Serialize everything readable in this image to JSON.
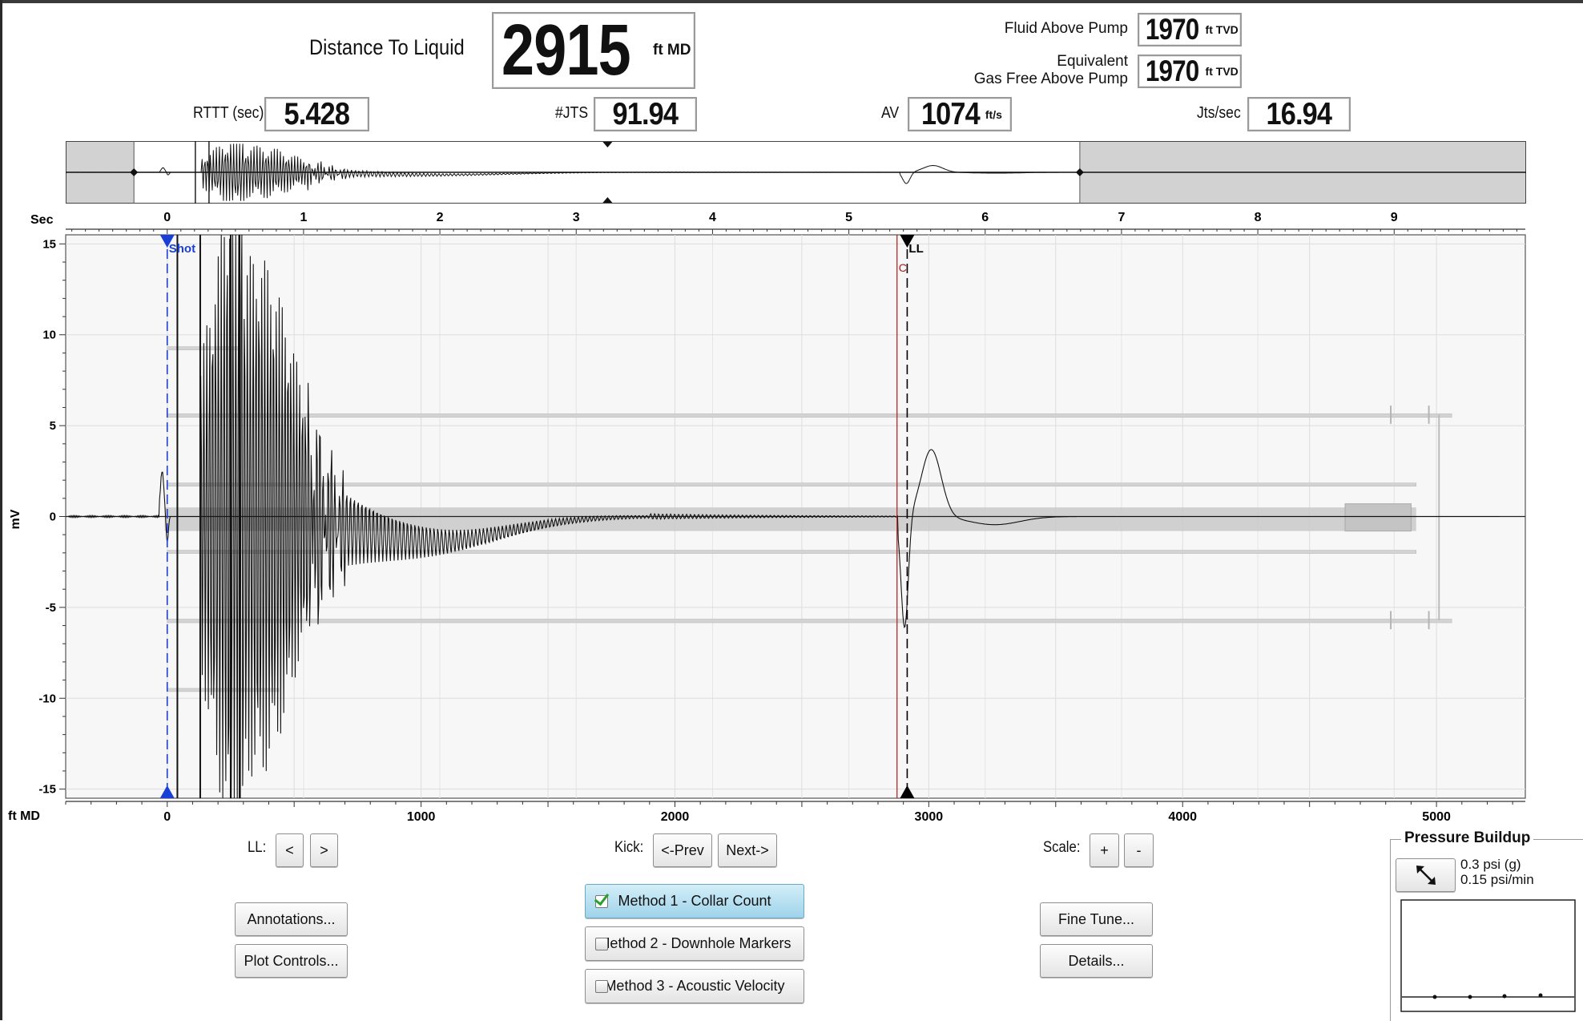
{
  "header": {
    "distance_label": "Distance To Liquid",
    "distance_value": "2915",
    "distance_unit": "ft MD",
    "fluid_above_pump_label": "Fluid Above Pump",
    "fluid_above_pump_value": "1970",
    "fluid_above_pump_unit": "ft TVD",
    "equivalent_label_1": "Equivalent",
    "equivalent_label_2": "Gas Free Above Pump",
    "equivalent_value": "1970",
    "equivalent_unit": "ft TVD",
    "rttt_label": "RTTT (sec)",
    "rttt_value": "5.428",
    "jts_label": "#JTS",
    "jts_value": "91.94",
    "av_label": "AV",
    "av_value": "1074",
    "av_unit": "ft/s",
    "jts_per_sec_label": "Jts/sec",
    "jts_per_sec_value": "16.94"
  },
  "chart_data": {
    "type": "line",
    "top_axis_label": "Sec",
    "bottom_axis_label": "ft MD",
    "ylabel": "mV",
    "top_axis_range": [
      -0.75,
      9.95
    ],
    "x_range_ft": [
      -400,
      5350
    ],
    "ylim": [
      -15.5,
      15.5
    ],
    "top_ticks": [
      "0",
      "1",
      "2",
      "3",
      "4",
      "5",
      "6",
      "7",
      "8",
      "9"
    ],
    "bottom_ticks": [
      "0",
      "1000",
      "2000",
      "3000",
      "4000",
      "5000"
    ],
    "y_ticks": [
      "15",
      "10",
      "5",
      "0",
      "-5",
      "-10",
      "-15"
    ],
    "markers": [
      {
        "label": "Shot",
        "x_ft": 0,
        "color": "#1a3fd6"
      },
      {
        "label": "LL",
        "x_ft": 2915,
        "color": "#000000"
      },
      {
        "label": "C",
        "x_ft": 2875,
        "color": "#b01818"
      }
    ],
    "series": [
      {
        "values": "echo trace (mV vs ft MD)"
      }
    ]
  },
  "controls": {
    "ll_label": "LL:",
    "ll_prev": "<",
    "ll_next": ">",
    "kick_label": "Kick:",
    "kick_prev": "<-Prev",
    "kick_next": "Next->",
    "scale_label": "Scale:",
    "scale_plus": "+",
    "scale_minus": "-",
    "annotations": "Annotations...",
    "plot_controls": "Plot Controls...",
    "method1": "Method 1 - Collar Count",
    "method2": "Method 2 - Downhole Markers",
    "method3": "Method 3 - Acoustic Velocity",
    "method1_checked": true,
    "method2_checked": false,
    "method3_checked": false,
    "fine_tune": "Fine Tune...",
    "details": "Details..."
  },
  "pressure_buildup": {
    "title": "Pressure Buildup",
    "line1": "0.3 psi (g)",
    "line2": "0.15 psi/min",
    "expand_icon": "diagonal-arrows-icon"
  }
}
